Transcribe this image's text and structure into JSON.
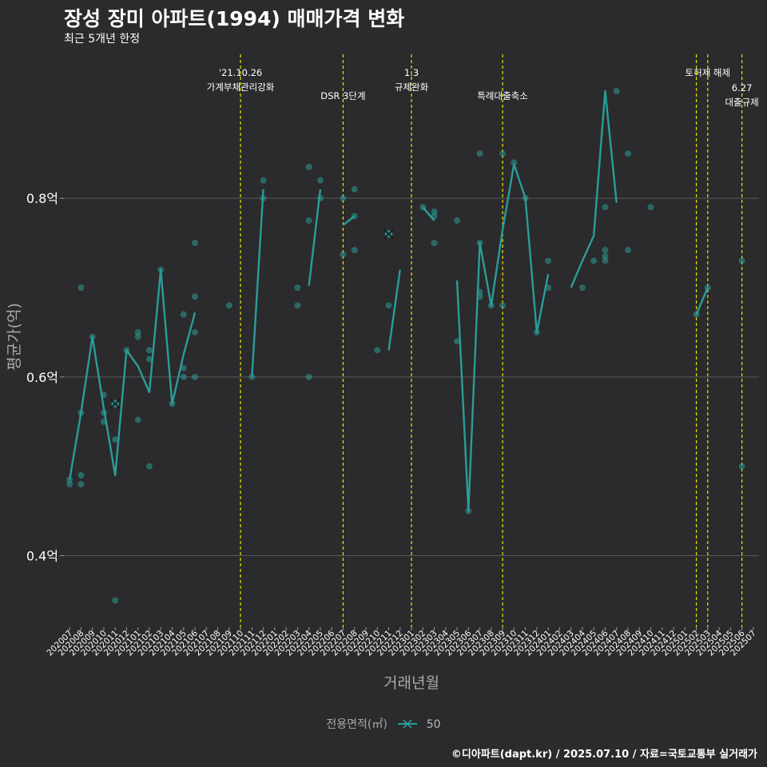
{
  "title": "장성 장미 아파트(1994) 매매가격 변화",
  "subtitle": "최근 5개년 한정",
  "caption": "©디아파트(dapt.kr) / 2025.07.10 / 자료=국토교통부 실거래가",
  "colors": {
    "background": "#2b2a2c",
    "series": "#2a9d98",
    "event_line": "#e8e800",
    "grid": "#5a5a5a",
    "text": "#ffffff",
    "axis_text": "#bbbbbb"
  },
  "chart_data": {
    "type": "line",
    "xlabel": "거래년월",
    "ylabel": "평균가(억)",
    "ylim": [
      0.32,
      0.97
    ],
    "y_ticks": [
      0.4,
      0.6,
      0.8
    ],
    "y_tick_labels": [
      "0.4억",
      "0.6억",
      "0.8억"
    ],
    "grid": true,
    "legend_position": "bottom",
    "legend_title": "전용면적(㎡)",
    "categories": [
      "202007",
      "202008",
      "202009",
      "202010",
      "202011",
      "202012",
      "202101",
      "202102",
      "202103",
      "202104",
      "202105",
      "202106",
      "202107",
      "202108",
      "202109",
      "202110",
      "202111",
      "202112",
      "202201",
      "202202",
      "202203",
      "202204",
      "202205",
      "202206",
      "202207",
      "202208",
      "202209",
      "202210",
      "202211",
      "202212",
      "202301",
      "202302",
      "202303",
      "202304",
      "202305",
      "202306",
      "202307",
      "202308",
      "202309",
      "202310",
      "202311",
      "202312",
      "202401",
      "202402",
      "202403",
      "202404",
      "202405",
      "202406",
      "202407",
      "202408",
      "202409",
      "202410",
      "202411",
      "202412",
      "202501",
      "202502",
      "202503",
      "202504",
      "202505",
      "202506",
      "202507"
    ],
    "series": [
      {
        "name": "50",
        "values": [
          0.485,
          0.56,
          0.645,
          0.565,
          0.49,
          0.63,
          0.612,
          0.583,
          0.72,
          0.57,
          0.625,
          0.672,
          null,
          null,
          null,
          null,
          0.6,
          0.81,
          null,
          null,
          null,
          0.702,
          0.81,
          null,
          0.77,
          0.78,
          null,
          null,
          0.63,
          0.72,
          null,
          0.79,
          0.775,
          null,
          0.708,
          0.45,
          0.75,
          0.68,
          0.765,
          0.838,
          0.8,
          0.65,
          0.715,
          null,
          0.7,
          0.73,
          0.758,
          0.92,
          0.795,
          null,
          0.79,
          null,
          null,
          null,
          null,
          0.67,
          0.7,
          null,
          null,
          null,
          null
        ]
      }
    ],
    "scatter_points": [
      [
        "202007",
        0.48
      ],
      [
        "202007",
        0.485
      ],
      [
        "202008",
        0.56
      ],
      [
        "202008",
        0.7
      ],
      [
        "202008",
        0.49
      ],
      [
        "202008",
        0.48
      ],
      [
        "202009",
        0.645
      ],
      [
        "202010",
        0.58
      ],
      [
        "202010",
        0.56
      ],
      [
        "202010",
        0.55
      ],
      [
        "202011",
        0.57
      ],
      [
        "202011",
        0.53
      ],
      [
        "202011",
        0.35
      ],
      [
        "202012",
        0.63
      ],
      [
        "202101",
        0.65
      ],
      [
        "202101",
        0.645
      ],
      [
        "202101",
        0.552
      ],
      [
        "202102",
        0.63
      ],
      [
        "202102",
        0.62
      ],
      [
        "202102",
        0.5
      ],
      [
        "202103",
        0.72
      ],
      [
        "202104",
        0.57
      ],
      [
        "202105",
        0.67
      ],
      [
        "202105",
        0.61
      ],
      [
        "202105",
        0.6
      ],
      [
        "202106",
        0.75
      ],
      [
        "202106",
        0.69
      ],
      [
        "202106",
        0.65
      ],
      [
        "202106",
        0.6
      ],
      [
        "202109",
        0.68
      ],
      [
        "202111",
        0.6
      ],
      [
        "202112",
        0.82
      ],
      [
        "202112",
        0.8
      ],
      [
        "202203",
        0.7
      ],
      [
        "202203",
        0.68
      ],
      [
        "202204",
        0.835
      ],
      [
        "202204",
        0.775
      ],
      [
        "202204",
        0.6
      ],
      [
        "202205",
        0.82
      ],
      [
        "202205",
        0.8
      ],
      [
        "202207",
        0.8
      ],
      [
        "202207",
        0.737
      ],
      [
        "202208",
        0.81
      ],
      [
        "202208",
        0.78
      ],
      [
        "202208",
        0.742
      ],
      [
        "202210",
        0.63
      ],
      [
        "202211",
        0.76
      ],
      [
        "202211",
        0.68
      ],
      [
        "202302",
        0.79
      ],
      [
        "202303",
        0.785
      ],
      [
        "202303",
        0.78
      ],
      [
        "202303",
        0.75
      ],
      [
        "202305",
        0.775
      ],
      [
        "202305",
        0.64
      ],
      [
        "202306",
        0.45
      ],
      [
        "202307",
        0.85
      ],
      [
        "202307",
        0.75
      ],
      [
        "202307",
        0.695
      ],
      [
        "202307",
        0.69
      ],
      [
        "202308",
        0.68
      ],
      [
        "202309",
        0.85
      ],
      [
        "202309",
        0.68
      ],
      [
        "202310",
        0.84
      ],
      [
        "202311",
        0.8
      ],
      [
        "202312",
        0.65
      ],
      [
        "202401",
        0.73
      ],
      [
        "202401",
        0.7
      ],
      [
        "202404",
        0.7
      ],
      [
        "202405",
        0.73
      ],
      [
        "202406",
        0.79
      ],
      [
        "202406",
        0.742
      ],
      [
        "202406",
        0.735
      ],
      [
        "202406",
        0.73
      ],
      [
        "202407",
        0.92
      ],
      [
        "202408",
        0.85
      ],
      [
        "202408",
        0.742
      ],
      [
        "202410",
        0.79
      ],
      [
        "202502",
        0.67
      ],
      [
        "202503",
        0.7
      ],
      [
        "202506",
        0.73
      ],
      [
        "202506",
        0.5
      ]
    ],
    "highlight_points": [
      [
        "202011",
        0.57
      ],
      [
        "202211",
        0.76
      ]
    ],
    "events": [
      {
        "x": "202110",
        "lines": [
          "'21.10.26",
          "가계부채관리강화"
        ],
        "level": 0
      },
      {
        "x": "202207",
        "lines": [
          "DSR 3단계"
        ],
        "level": 1
      },
      {
        "x": "202301",
        "lines": [
          "1.3",
          "규제완화"
        ],
        "level": 0
      },
      {
        "x": "202309",
        "lines": [
          "특례대출축소"
        ],
        "level": 1
      },
      {
        "x": "202502",
        "lines": [],
        "level": 0
      },
      {
        "x": "202503",
        "lines": [
          "토허제 해제"
        ],
        "level": 0
      },
      {
        "x": "202506",
        "lines": [
          "6.27",
          "대출규제"
        ],
        "level": 2
      }
    ]
  }
}
